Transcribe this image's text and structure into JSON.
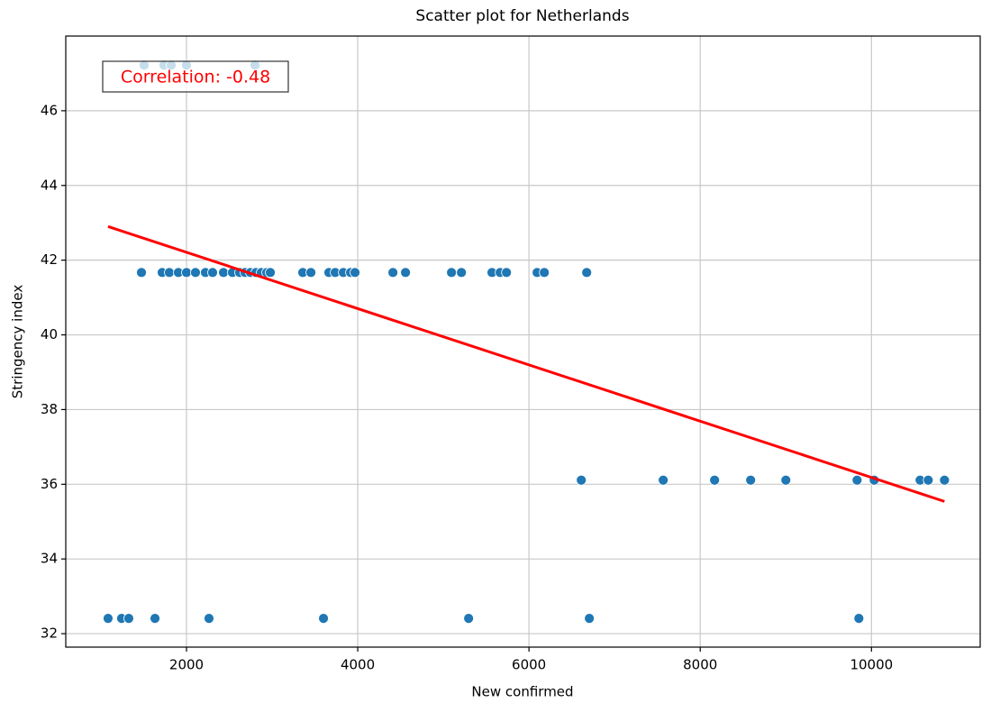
{
  "chart_data": {
    "type": "scatter",
    "title": "Scatter plot for Netherlands",
    "xlabel": "New confirmed",
    "ylabel": "Stringency index",
    "annotation": "Correlation: -0.48",
    "annotation_color": "#ff0000",
    "color": "#1f77b4",
    "x": [
      1505,
      1737,
      1821,
      2000,
      2800,
      1474,
      1716,
      1800,
      1905,
      2000,
      2105,
      2221,
      2305,
      2432,
      2537,
      2621,
      2684,
      2747,
      2811,
      2874,
      2937,
      2979,
      3358,
      3453,
      3663,
      3737,
      3832,
      3916,
      3968,
      4411,
      4558,
      5095,
      5211,
      5568,
      5663,
      5737,
      6095,
      6179,
      6674,
      6611,
      7568,
      8168,
      8589,
      9000,
      9832,
      10032,
      10568,
      10663,
      10853,
      1084,
      1242,
      1326,
      1632,
      2263,
      3600,
      5295,
      6705,
      9853
    ],
    "values": [
      47.22,
      47.22,
      47.22,
      47.22,
      47.22,
      41.67,
      41.67,
      41.67,
      41.67,
      41.67,
      41.67,
      41.67,
      41.67,
      41.67,
      41.67,
      41.67,
      41.67,
      41.67,
      41.67,
      41.67,
      41.67,
      41.67,
      41.67,
      41.67,
      41.67,
      41.67,
      41.67,
      41.67,
      41.67,
      41.67,
      41.67,
      41.67,
      41.67,
      41.67,
      41.67,
      41.67,
      41.67,
      41.67,
      41.67,
      36.11,
      36.11,
      36.11,
      36.11,
      36.11,
      36.11,
      36.11,
      36.11,
      36.11,
      36.11,
      32.41,
      32.41,
      32.41,
      32.41,
      32.41,
      32.41,
      32.41,
      32.41,
      32.41
    ],
    "fit_line": {
      "x": [
        1084,
        10853
      ],
      "y": [
        42.9,
        35.54
      ],
      "color": "#ff0000"
    },
    "xlim": [
      590,
      11270
    ],
    "ylim": [
      31.64,
      48.0
    ],
    "xticks": [
      2000,
      4000,
      6000,
      8000,
      10000
    ],
    "yticks": [
      32,
      34,
      36,
      38,
      40,
      42,
      44,
      46
    ],
    "grid": true
  }
}
